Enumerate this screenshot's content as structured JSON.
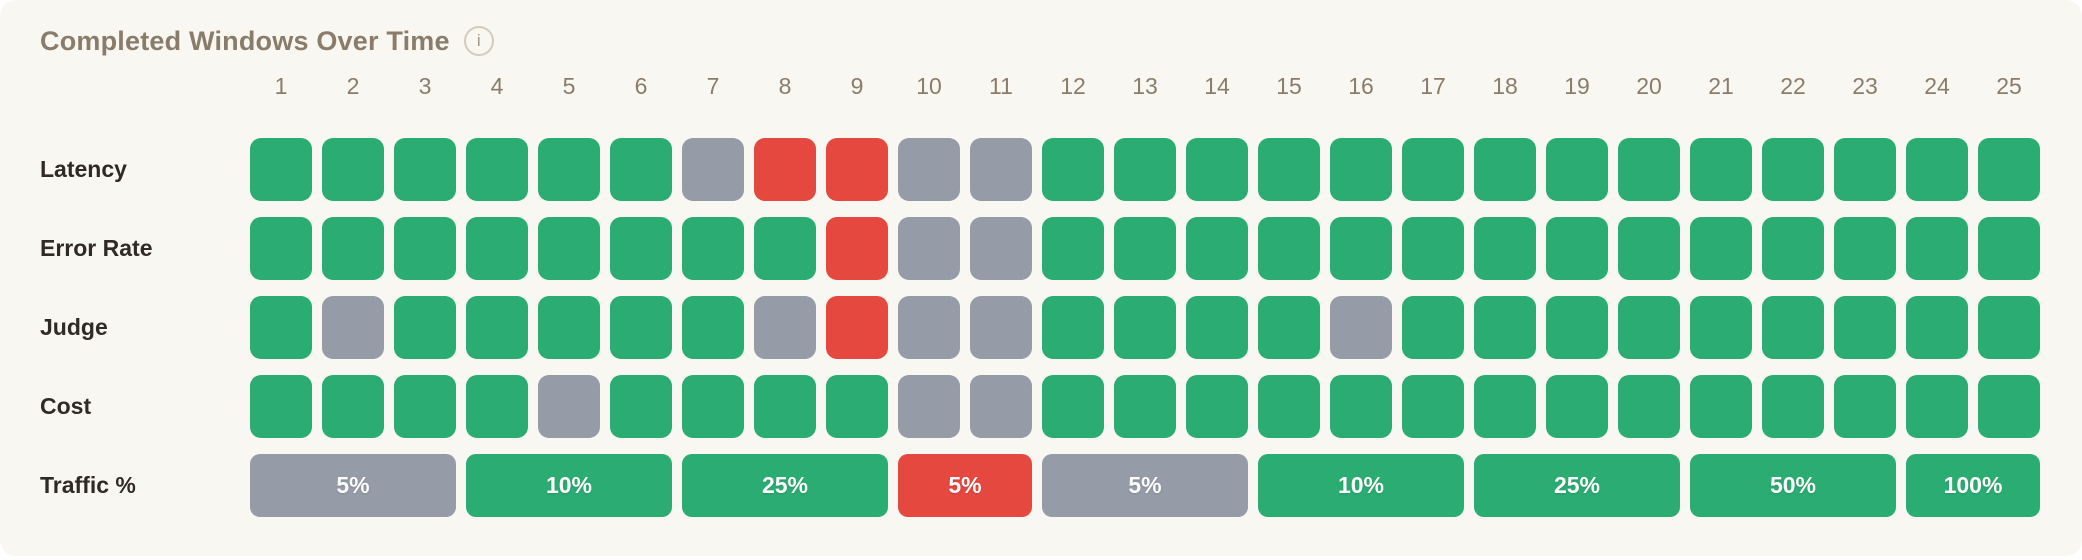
{
  "card": {
    "title": "Completed Windows Over Time",
    "info_icon": "i"
  },
  "colors": {
    "page_background": "#ffffff",
    "card_background": "#f9f7f1",
    "title_text": "#8a7c6a",
    "column_number_text": "#8a7c6a",
    "row_label_text": "#2f2a23",
    "segment_text": "#ffffff",
    "pass": "#2bac72",
    "skip": "#959ba7",
    "fail": "#e4483e"
  },
  "chart_data": {
    "type": "heatmap",
    "title": "Completed Windows Over Time",
    "columns": [
      "1",
      "2",
      "3",
      "4",
      "5",
      "6",
      "7",
      "8",
      "9",
      "10",
      "11",
      "12",
      "13",
      "14",
      "15",
      "16",
      "17",
      "18",
      "19",
      "20",
      "21",
      "22",
      "23",
      "24",
      "25"
    ],
    "status_colors": {
      "pass": "#2bac72",
      "skip": "#959ba7",
      "fail": "#e4483e"
    },
    "rows": [
      {
        "label": "Latency",
        "cells": [
          "pass",
          "pass",
          "pass",
          "pass",
          "pass",
          "pass",
          "skip",
          "fail",
          "fail",
          "skip",
          "skip",
          "pass",
          "pass",
          "pass",
          "pass",
          "pass",
          "pass",
          "pass",
          "pass",
          "pass",
          "pass",
          "pass",
          "pass",
          "pass",
          "pass"
        ]
      },
      {
        "label": "Error Rate",
        "cells": [
          "pass",
          "pass",
          "pass",
          "pass",
          "pass",
          "pass",
          "pass",
          "pass",
          "fail",
          "skip",
          "skip",
          "pass",
          "pass",
          "pass",
          "pass",
          "pass",
          "pass",
          "pass",
          "pass",
          "pass",
          "pass",
          "pass",
          "pass",
          "pass",
          "pass"
        ]
      },
      {
        "label": "Judge",
        "cells": [
          "pass",
          "skip",
          "pass",
          "pass",
          "pass",
          "pass",
          "pass",
          "skip",
          "fail",
          "skip",
          "skip",
          "pass",
          "pass",
          "pass",
          "pass",
          "skip",
          "pass",
          "pass",
          "pass",
          "pass",
          "pass",
          "pass",
          "pass",
          "pass",
          "pass"
        ]
      },
      {
        "label": "Cost",
        "cells": [
          "pass",
          "pass",
          "pass",
          "pass",
          "skip",
          "pass",
          "pass",
          "pass",
          "pass",
          "skip",
          "skip",
          "pass",
          "pass",
          "pass",
          "pass",
          "pass",
          "pass",
          "pass",
          "pass",
          "pass",
          "pass",
          "pass",
          "pass",
          "pass",
          "pass"
        ]
      }
    ],
    "traffic": {
      "label": "Traffic %",
      "segments": [
        {
          "label": "5%",
          "status": "skip",
          "span": 3
        },
        {
          "label": "10%",
          "status": "pass",
          "span": 3
        },
        {
          "label": "25%",
          "status": "pass",
          "span": 3
        },
        {
          "label": "5%",
          "status": "fail",
          "span": 2
        },
        {
          "label": "5%",
          "status": "skip",
          "span": 3
        },
        {
          "label": "10%",
          "status": "pass",
          "span": 3
        },
        {
          "label": "25%",
          "status": "pass",
          "span": 3
        },
        {
          "label": "50%",
          "status": "pass",
          "span": 3
        },
        {
          "label": "100%",
          "status": "pass",
          "span": 2
        }
      ]
    }
  }
}
